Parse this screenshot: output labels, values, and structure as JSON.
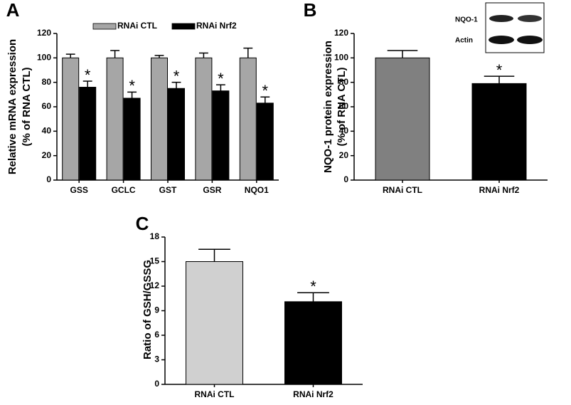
{
  "chart_data": [
    {
      "type": "bar",
      "panel": "A",
      "ylabel": [
        "Relative mRNA expression",
        "(% of RNA CTL)"
      ],
      "categories": [
        "GSS",
        "GCLC",
        "GST",
        "GSR",
        "NQO1"
      ],
      "series": [
        {
          "name": "RNAi CTL",
          "color": "#a6a6a6",
          "values": [
            100,
            100,
            100,
            100,
            100
          ],
          "errors": [
            3,
            6,
            2,
            4,
            8
          ],
          "labels": [
            null,
            null,
            null,
            null,
            null
          ]
        },
        {
          "name": "RNAi Nrf2",
          "color": "#000000",
          "values": [
            76,
            67,
            75,
            73,
            63
          ],
          "errors": [
            5,
            5,
            5,
            5,
            5
          ],
          "labels": [
            "*",
            "*",
            "*",
            "*",
            "*"
          ]
        }
      ],
      "ylim": [
        0,
        120
      ],
      "yticks": [
        0,
        20,
        40,
        60,
        80,
        100,
        120
      ]
    },
    {
      "type": "bar",
      "panel": "B",
      "ylabel": [
        "NQO-1 protein expression",
        "(% of RNA CTL)"
      ],
      "categories": [
        "RNAi CTL",
        "RNAi Nrf2"
      ],
      "values": [
        100,
        79
      ],
      "errors": [
        6,
        6
      ],
      "labels": [
        null,
        "*"
      ],
      "colors": [
        "#808080",
        "#000000"
      ],
      "inset": {
        "labels": [
          "NQO-1",
          "Actin"
        ]
      },
      "ylim": [
        0,
        120
      ],
      "yticks": [
        0,
        20,
        40,
        60,
        80,
        100,
        120
      ]
    },
    {
      "type": "bar",
      "panel": "C",
      "ylabel": [
        "Ratio of GSH/GSSG"
      ],
      "categories": [
        "RNAi CTL",
        "RNAi Nrf2"
      ],
      "values": [
        15,
        10.1
      ],
      "errors": [
        1.5,
        1.1
      ],
      "labels": [
        null,
        "*"
      ],
      "colors": [
        "#d0d0d0",
        "#000000"
      ],
      "ylim": [
        0,
        18
      ],
      "yticks": [
        0,
        3,
        6,
        9,
        12,
        15,
        18
      ]
    }
  ]
}
